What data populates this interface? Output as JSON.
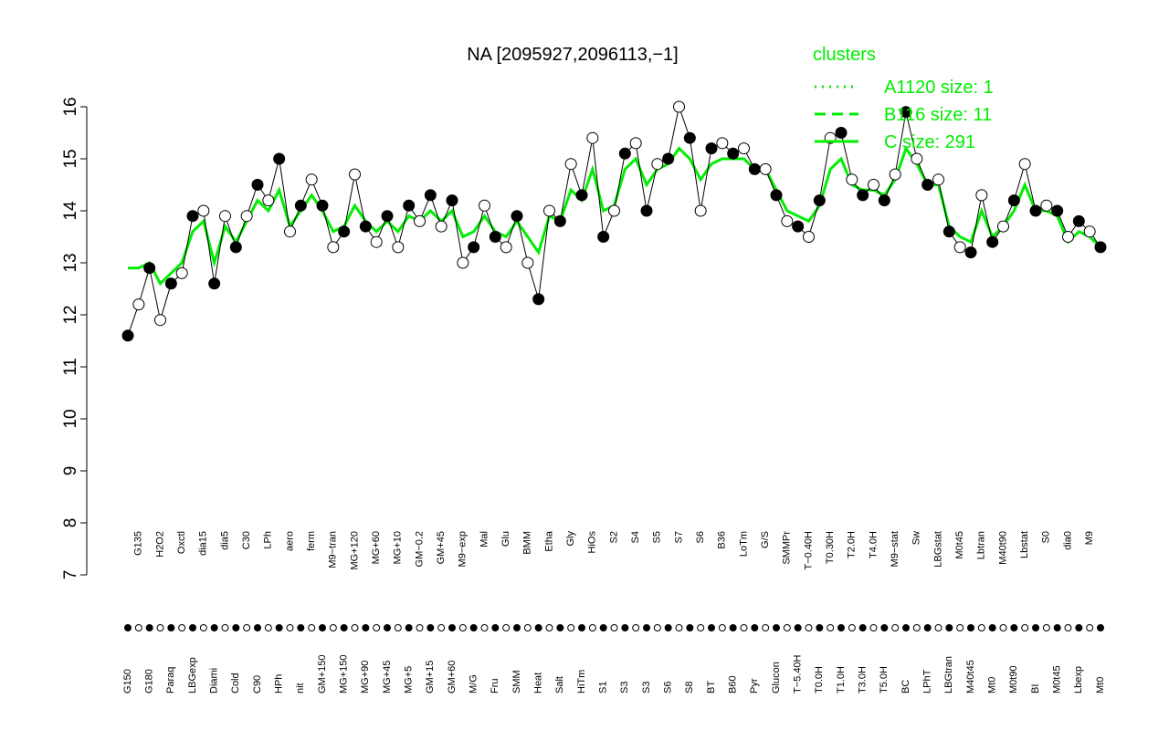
{
  "chart_data": {
    "type": "line",
    "title": "NA [2095927,2096113,−1]",
    "legend_title": "clusters",
    "ylim": [
      7,
      16.4
    ],
    "yticks": [
      7,
      8,
      9,
      10,
      11,
      12,
      13,
      14,
      15,
      16
    ],
    "color": "#000000",
    "categories": [
      "G150",
      "G135",
      "G180",
      "H2O2",
      "Paraq",
      "Oxctl",
      "LBGexp",
      "dia15",
      "Diami",
      "dia5",
      "Cold",
      "C30",
      "C90",
      "LPh",
      "HPh",
      "aero",
      "nit",
      "ferm",
      "GM+150",
      "M9−tran",
      "MG+150",
      "MG+120",
      "MG+90",
      "MG+60",
      "MG+45",
      "MG+10",
      "MG+5",
      "GM−0.2",
      "GM+15",
      "GM+45",
      "GM+60",
      "M9−exp",
      "M/G",
      "Mal",
      "Fru",
      "Glu",
      "SMM",
      "BMM",
      "Heat",
      "Etha",
      "Salt",
      "Gly",
      "HiTm",
      "HiOs",
      "S1",
      "S2",
      "S3",
      "S4",
      "S3",
      "S5",
      "S6",
      "S7",
      "S8",
      "S6",
      "BT",
      "B36",
      "B60",
      "LoTm",
      "Pyr",
      "G/S",
      "Glucon",
      "SMMPr",
      "T−5.40H",
      "T−0.40H",
      "T0.0H",
      "T0.30H",
      "T1.0H",
      "T2.0H",
      "T3.0H",
      "T4.0H",
      "T5.0H",
      "M9−stat",
      "BC",
      "Sw",
      "LPhT",
      "LBGstat",
      "LBGtran",
      "M0t45",
      "M40t45",
      "Lbtran",
      "Mt0",
      "M40t90",
      "M0t90",
      "Lbstat",
      "BI",
      "S0",
      "M0t45",
      "dia0",
      "Lbexp",
      "M9",
      "Mt0"
    ],
    "values": [
      11.6,
      12.2,
      12.9,
      11.9,
      12.6,
      12.8,
      13.9,
      14.0,
      12.6,
      13.9,
      13.3,
      13.9,
      14.5,
      14.2,
      15.0,
      13.6,
      14.1,
      14.6,
      14.1,
      13.3,
      13.6,
      14.7,
      13.7,
      13.4,
      13.9,
      13.3,
      14.1,
      13.8,
      14.3,
      13.7,
      14.2,
      13.0,
      13.3,
      14.1,
      13.5,
      13.3,
      13.9,
      13.0,
      12.3,
      14.0,
      13.8,
      14.9,
      14.3,
      15.4,
      13.5,
      14.0,
      15.1,
      15.3,
      14.0,
      14.9,
      15.0,
      16.0,
      15.4,
      14.0,
      15.2,
      15.3,
      15.1,
      15.2,
      14.8,
      14.8,
      14.3,
      13.8,
      13.7,
      13.5,
      14.2,
      15.4,
      15.5,
      14.6,
      14.3,
      14.5,
      14.2,
      14.7,
      15.9,
      15.0,
      14.5,
      14.6,
      13.6,
      13.3,
      13.2,
      14.3,
      13.4,
      13.7,
      14.2,
      14.9,
      14.0,
      14.1,
      14.0,
      13.5,
      13.8,
      13.6,
      13.3
    ],
    "series": [
      {
        "name": "A1120 size: 1",
        "color": "#00ee00",
        "dash": "2,6"
      },
      {
        "name": "B116 size: 11",
        "color": "#00ee00",
        "dash": "12,7"
      },
      {
        "name": "C size: 291",
        "color": "#00ee00",
        "values": [
          12.9,
          12.9,
          13.0,
          12.6,
          12.8,
          13.0,
          13.6,
          13.8,
          13.0,
          13.7,
          13.4,
          13.8,
          14.2,
          14.0,
          14.4,
          13.7,
          14.0,
          14.3,
          14.0,
          13.6,
          13.7,
          14.1,
          13.8,
          13.6,
          13.8,
          13.6,
          13.9,
          13.8,
          14.0,
          13.8,
          14.0,
          13.5,
          13.6,
          13.9,
          13.6,
          13.5,
          13.8,
          13.5,
          13.2,
          13.9,
          13.8,
          14.4,
          14.2,
          14.8,
          14.0,
          14.1,
          14.8,
          15.0,
          14.5,
          14.8,
          14.9,
          15.2,
          15.0,
          14.6,
          14.9,
          15.0,
          15.0,
          15.0,
          14.8,
          14.8,
          14.4,
          14.0,
          13.9,
          13.8,
          14.1,
          14.8,
          15.0,
          14.5,
          14.4,
          14.4,
          14.3,
          14.6,
          15.2,
          14.9,
          14.5,
          14.5,
          13.7,
          13.5,
          13.4,
          14.0,
          13.5,
          13.7,
          14.0,
          14.5,
          14.0,
          14.0,
          13.9,
          13.4,
          13.6,
          13.5,
          13.3
        ]
      }
    ]
  }
}
